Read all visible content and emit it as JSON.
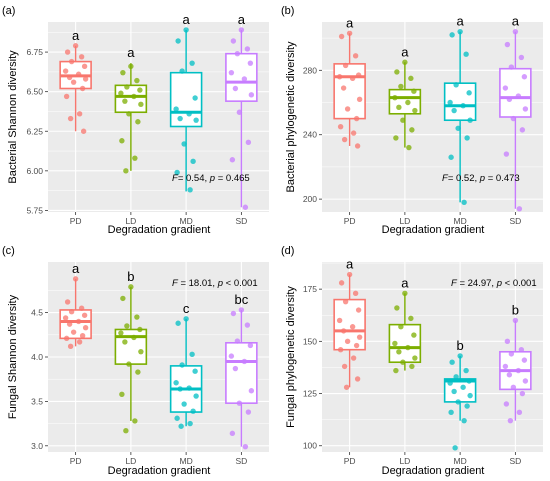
{
  "colors": {
    "PD": "#F8766D",
    "LD": "#7CAE00",
    "MD": "#00BFC4",
    "SD": "#C77CFF",
    "panel_background": "#EBEBEB",
    "grid": "#FFFFFF"
  },
  "chart_data": [
    {
      "panel": "(a)",
      "type": "boxplot",
      "xlabel": "Degradation gradient",
      "ylabel": "Bacterial Shannon diversity",
      "categories": [
        "PD",
        "LD",
        "MD",
        "SD"
      ],
      "ylim": [
        5.74,
        6.94
      ],
      "yticks": [
        5.75,
        6.0,
        6.25,
        6.5,
        6.75
      ],
      "ytick_labels": [
        "5.75",
        "6.00",
        "6.25",
        "6.50",
        "6.75"
      ],
      "minor_yticks": [
        5.875,
        6.125,
        6.375,
        6.625,
        6.875
      ],
      "grid": true,
      "boxes": [
        {
          "group": "PD",
          "min": 6.25,
          "q1": 6.52,
          "median": 6.6,
          "q3": 6.69,
          "max": 6.79,
          "letter": "a"
        },
        {
          "group": "LD",
          "min": 6.0,
          "q1": 6.37,
          "median": 6.47,
          "q3": 6.54,
          "max": 6.68,
          "letter": "a"
        },
        {
          "group": "MD",
          "min": 5.87,
          "q1": 6.28,
          "median": 6.37,
          "q3": 6.62,
          "max": 6.89,
          "letter": "a"
        },
        {
          "group": "SD",
          "min": 5.77,
          "q1": 6.44,
          "median": 6.56,
          "q3": 6.74,
          "max": 6.89,
          "letter": "a"
        }
      ],
      "points": {
        "PD": [
          6.79,
          6.75,
          6.72,
          6.69,
          6.66,
          6.63,
          6.61,
          6.59,
          6.58,
          6.56,
          6.52,
          6.47,
          6.36,
          6.33,
          6.25
        ],
        "LD": [
          6.66,
          6.62,
          6.57,
          6.53,
          6.51,
          6.49,
          6.47,
          6.44,
          6.42,
          6.36,
          6.31,
          6.19,
          6.08,
          6.0
        ],
        "MD": [
          6.89,
          6.82,
          6.68,
          6.63,
          6.46,
          6.39,
          6.36,
          6.33,
          6.32,
          6.17,
          6.06,
          5.99,
          5.88
        ],
        "SD": [
          6.89,
          6.82,
          6.77,
          6.74,
          6.68,
          6.62,
          6.58,
          6.52,
          6.48,
          6.37,
          6.18,
          6.07,
          5.77
        ]
      },
      "stat": {
        "F_label": "F",
        "F_value": "= 0.54, ",
        "p_label": "p",
        "p_value": " = 0.465",
        "position": "bottom-right"
      }
    },
    {
      "panel": "(b)",
      "type": "boxplot",
      "xlabel": "Degradation gradient",
      "ylabel": "Bacterial phylogenetic diversity",
      "categories": [
        "PD",
        "LD",
        "MD",
        "SD"
      ],
      "ylim": [
        192,
        310
      ],
      "yticks": [
        200,
        240,
        280
      ],
      "ytick_labels": [
        "200",
        "240",
        "280"
      ],
      "minor_yticks": [
        220,
        260,
        300
      ],
      "grid": true,
      "boxes": [
        {
          "group": "PD",
          "min": 233,
          "q1": 250,
          "median": 276,
          "q3": 284,
          "max": 303,
          "letter": "a"
        },
        {
          "group": "LD",
          "min": 232,
          "q1": 253,
          "median": 263,
          "q3": 268,
          "max": 285,
          "letter": "a"
        },
        {
          "group": "MD",
          "min": 198,
          "q1": 249,
          "median": 258,
          "q3": 272,
          "max": 304,
          "letter": "a"
        },
        {
          "group": "SD",
          "min": 194,
          "q1": 251,
          "median": 263,
          "q3": 281,
          "max": 304,
          "letter": "a"
        }
      ],
      "points": {
        "PD": [
          303,
          301,
          289,
          283,
          277,
          276,
          275,
          269,
          262,
          256,
          250,
          245,
          241,
          237,
          233
        ],
        "LD": [
          285,
          279,
          275,
          270,
          267,
          263,
          260,
          257,
          255,
          249,
          243,
          238,
          232
        ],
        "MD": [
          304,
          302,
          290,
          271,
          266,
          260,
          258,
          255,
          249,
          244,
          238,
          226,
          198
        ],
        "SD": [
          304,
          296,
          288,
          282,
          276,
          269,
          264,
          262,
          256,
          250,
          243,
          228,
          194
        ]
      },
      "stat": {
        "F_label": "F",
        "F_value": "= 0.52, ",
        "p_label": "p",
        "p_value": " = 0.473",
        "position": "bottom-right"
      }
    },
    {
      "panel": "(c)",
      "type": "boxplot",
      "xlabel": "Degradation gradient",
      "ylabel": "Fungal Shannon diversity",
      "categories": [
        "PD",
        "LD",
        "MD",
        "SD"
      ],
      "ylim": [
        2.93,
        5.07
      ],
      "yticks": [
        3.0,
        3.5,
        4.0,
        4.5
      ],
      "ytick_labels": [
        "3.0",
        "3.5",
        "4.0",
        "4.5"
      ],
      "minor_yticks": [
        3.25,
        3.75,
        4.25,
        4.75
      ],
      "grid": true,
      "boxes": [
        {
          "group": "PD",
          "min": 4.12,
          "q1": 4.21,
          "median": 4.4,
          "q3": 4.53,
          "max": 4.88,
          "letter": "a"
        },
        {
          "group": "LD",
          "min": 3.28,
          "q1": 3.92,
          "median": 4.23,
          "q3": 4.31,
          "max": 4.79,
          "letter": "b"
        },
        {
          "group": "MD",
          "min": 3.22,
          "q1": 3.38,
          "median": 3.64,
          "q3": 3.9,
          "max": 4.43,
          "letter": "c"
        },
        {
          "group": "SD",
          "min": 2.99,
          "q1": 3.48,
          "median": 3.95,
          "q3": 4.16,
          "max": 4.53,
          "letter": "bc"
        }
      ],
      "points": {
        "PD": [
          4.88,
          4.62,
          4.55,
          4.51,
          4.47,
          4.44,
          4.4,
          4.37,
          4.33,
          4.28,
          4.24,
          4.21,
          4.17,
          4.12
        ],
        "LD": [
          4.79,
          4.66,
          4.45,
          4.35,
          4.31,
          4.27,
          4.22,
          4.17,
          4.06,
          3.92,
          3.83,
          3.58,
          3.28,
          3.17
        ],
        "MD": [
          4.43,
          4.38,
          4.03,
          3.91,
          3.84,
          3.71,
          3.65,
          3.64,
          3.56,
          3.47,
          3.39,
          3.31,
          3.25,
          3.22
        ],
        "SD": [
          4.53,
          4.49,
          4.36,
          4.18,
          4.13,
          4.01,
          3.95,
          3.87,
          3.62,
          3.48,
          3.38,
          3.14,
          2.99
        ]
      },
      "stat": {
        "F_label": "F",
        "F_value": " = 18.01, ",
        "p_label": "p",
        "p_value": " < 0.001",
        "position": "top-right"
      }
    },
    {
      "panel": "(d)",
      "type": "boxplot",
      "xlabel": "Degradation gradient",
      "ylabel": "Fungal phylogenetic diversity",
      "categories": [
        "PD",
        "LD",
        "MD",
        "SD"
      ],
      "ylim": [
        97,
        188
      ],
      "yticks": [
        100,
        125,
        150,
        175
      ],
      "ytick_labels": [
        "100",
        "125",
        "150",
        "175"
      ],
      "minor_yticks": [
        112.5,
        137.5,
        162.5,
        187.5
      ],
      "grid": true,
      "boxes": [
        {
          "group": "PD",
          "min": 128,
          "q1": 146,
          "median": 155,
          "q3": 170,
          "max": 182,
          "letter": "a"
        },
        {
          "group": "LD",
          "min": 136,
          "q1": 140,
          "median": 147,
          "q3": 158,
          "max": 173,
          "letter": "a"
        },
        {
          "group": "MD",
          "min": 112,
          "q1": 121,
          "median": 131,
          "q3": 132,
          "max": 143,
          "letter": "b"
        },
        {
          "group": "SD",
          "min": 112,
          "q1": 127,
          "median": 136,
          "q3": 145,
          "max": 160,
          "letter": "b"
        }
      ],
      "points": {
        "PD": [
          182,
          178,
          173,
          169,
          165,
          160,
          157,
          155,
          152,
          150,
          148,
          146,
          142,
          138,
          132,
          128
        ],
        "LD": [
          173,
          166,
          161,
          157,
          153,
          149,
          147,
          145,
          142,
          140,
          138,
          136
        ],
        "MD": [
          143,
          140,
          136,
          133,
          131,
          130,
          128,
          126,
          124,
          121,
          119,
          116,
          112,
          99
        ],
        "SD": [
          160,
          150,
          146,
          144,
          141,
          138,
          136,
          134,
          131,
          128,
          125,
          120,
          116,
          112
        ]
      },
      "stat": {
        "F_label": "F",
        "F_value": " = 24.97, ",
        "p_label": "p",
        "p_value": " < 0.001",
        "position": "top-right"
      }
    }
  ]
}
